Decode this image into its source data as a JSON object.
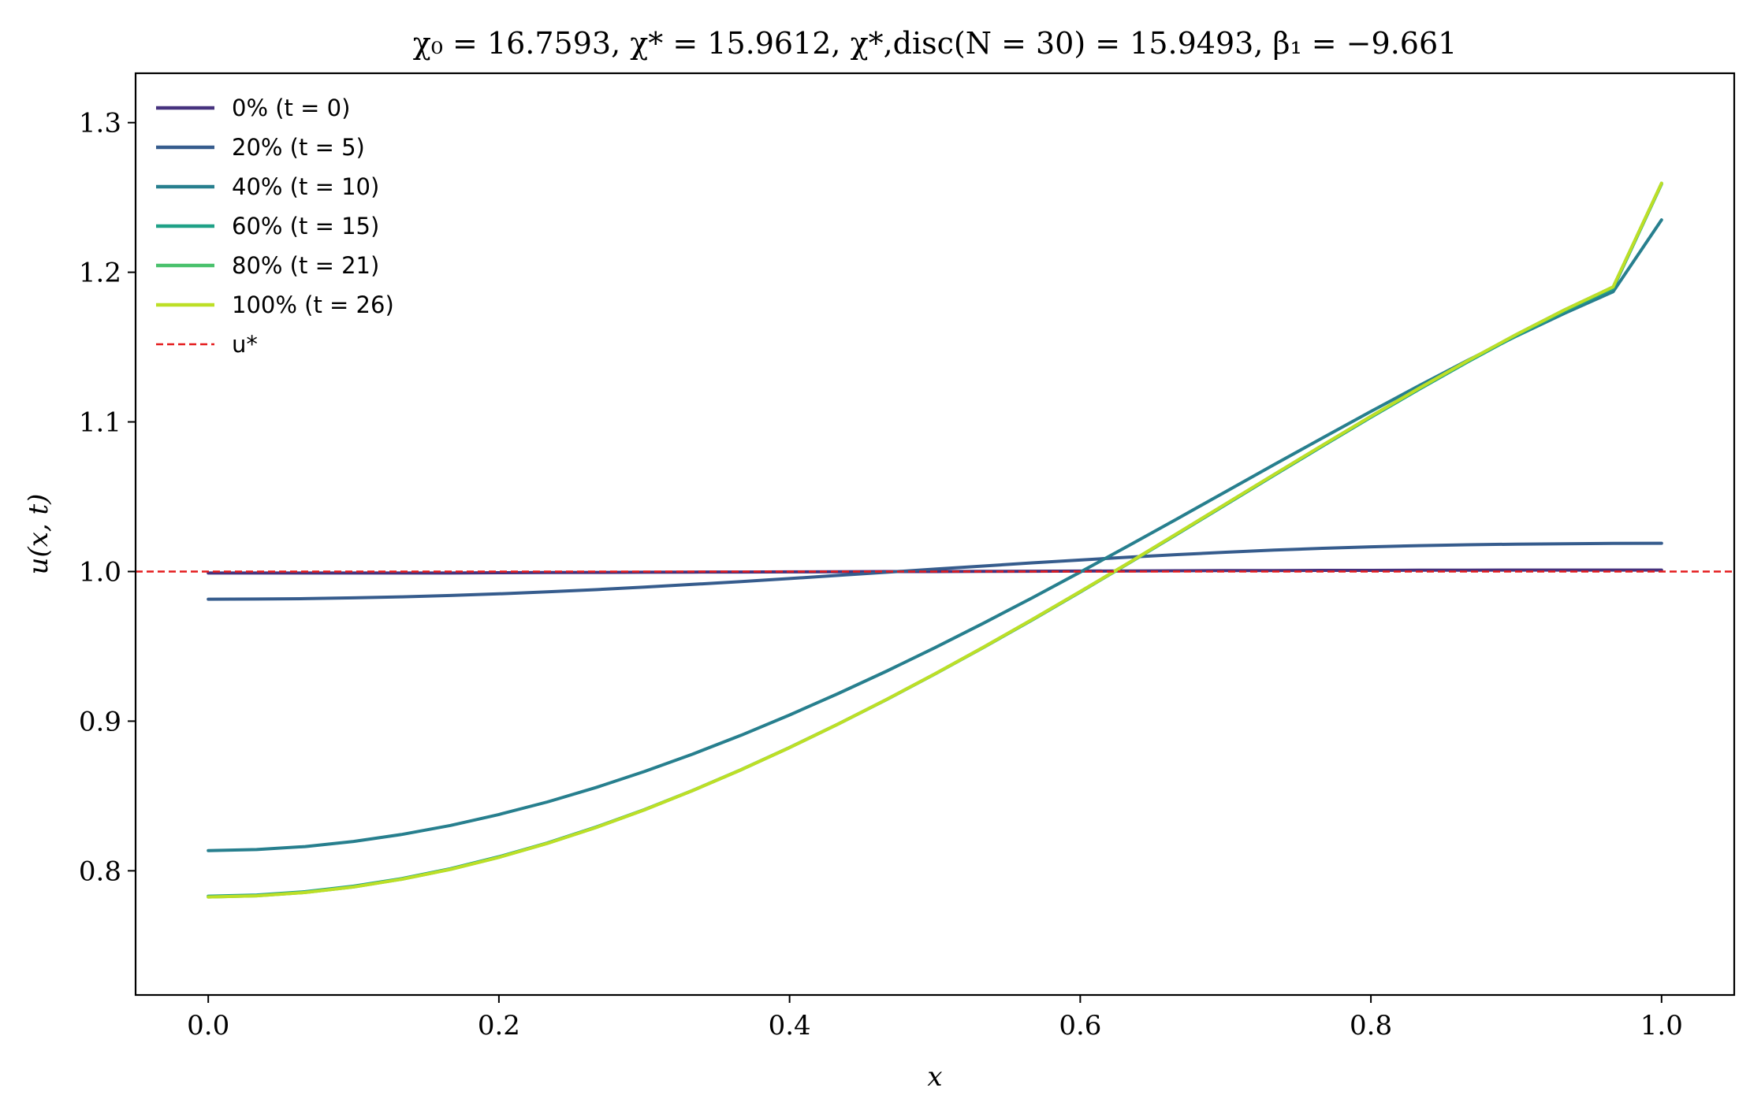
{
  "chart_data": {
    "type": "line",
    "title": "χ₀ = 16.7593,  χ* = 15.9612,  χ*,disc(N = 30) = 15.9493,  β₁ = −9.661",
    "xlabel": "x",
    "ylabel": "u(x, t)",
    "xlim": [
      -0.05,
      1.05
    ],
    "ylim": [
      0.717,
      1.333
    ],
    "xticks": [
      0.0,
      0.2,
      0.4,
      0.6,
      0.8,
      1.0
    ],
    "xtick_labels": [
      "0.0",
      "0.2",
      "0.4",
      "0.6",
      "0.8",
      "1.0"
    ],
    "yticks": [
      0.8,
      0.9,
      1.0,
      1.1,
      1.2,
      1.3
    ],
    "ytick_labels": [
      "0.8",
      "0.9",
      "1.0",
      "1.1",
      "1.2",
      "1.3"
    ],
    "grid": false,
    "legend_position": "top-left",
    "x": [
      0.0,
      0.0333,
      0.0667,
      0.1,
      0.1333,
      0.1667,
      0.2,
      0.2333,
      0.2667,
      0.3,
      0.3333,
      0.3667,
      0.4,
      0.4333,
      0.4667,
      0.5,
      0.5333,
      0.5667,
      0.6,
      0.6333,
      0.6667,
      0.7,
      0.7333,
      0.7667,
      0.8,
      0.8333,
      0.8667,
      0.9,
      0.9333,
      0.9667,
      1.0
    ],
    "series": [
      {
        "name": "0% (t = 0)",
        "color": "#46327e",
        "values": [
          0.999,
          0.999,
          0.999,
          0.999,
          0.999,
          0.999,
          0.9992,
          0.9993,
          0.9994,
          0.9995,
          0.9996,
          0.9997,
          0.9998,
          0.9999,
          1.0,
          1.0,
          1.0001,
          1.0002,
          1.0003,
          1.0004,
          1.0005,
          1.0006,
          1.0007,
          1.0008,
          1.0008,
          1.0009,
          1.0009,
          1.001,
          1.001,
          1.001,
          1.001
        ]
      },
      {
        "name": "20% (t = 5)",
        "color": "#365c8d",
        "values": [
          0.9815,
          0.9816,
          0.9819,
          0.9824,
          0.9831,
          0.984,
          0.9851,
          0.9864,
          0.9879,
          0.9896,
          0.9914,
          0.9933,
          0.9953,
          0.9974,
          0.9995,
          1.0016,
          1.0037,
          1.0058,
          1.0077,
          1.0096,
          1.0113,
          1.0129,
          1.0143,
          1.0155,
          1.0165,
          1.0173,
          1.0179,
          1.0183,
          1.0186,
          1.0188,
          1.0189
        ]
      },
      {
        "name": "40% (t = 10)",
        "color": "#277f8e",
        "values": [
          0.8135,
          0.8142,
          0.8162,
          0.8196,
          0.8243,
          0.8303,
          0.8376,
          0.846,
          0.8556,
          0.8663,
          0.878,
          0.8906,
          0.9041,
          0.9184,
          0.9334,
          0.9491,
          0.9654,
          0.9823,
          0.9996,
          1.0173,
          1.0352,
          1.0533,
          1.0714,
          1.0893,
          1.107,
          1.1243,
          1.1412,
          1.1573,
          1.1726,
          1.187,
          1.235
        ]
      },
      {
        "name": "60% (t = 15)",
        "color": "#1fa187",
        "values": [
          0.783,
          0.7838,
          0.786,
          0.7897,
          0.7948,
          0.8014,
          0.8094,
          0.8186,
          0.8292,
          0.8409,
          0.8537,
          0.8676,
          0.8824,
          0.898,
          0.9144,
          0.9315,
          0.9492,
          0.9675,
          0.9863,
          1.0055,
          1.025,
          1.0446,
          1.0643,
          1.0838,
          1.1031,
          1.1219,
          1.1402,
          1.1576,
          1.174,
          1.1893,
          1.259
        ]
      },
      {
        "name": "80% (t = 21)",
        "color": "#4ac16d",
        "values": [
          0.7825,
          0.7833,
          0.7855,
          0.7892,
          0.7944,
          0.801,
          0.809,
          0.8183,
          0.8289,
          0.8407,
          0.8536,
          0.8675,
          0.8823,
          0.898,
          0.9145,
          0.9316,
          0.9494,
          0.9678,
          0.9866,
          1.0058,
          1.0254,
          1.0451,
          1.0648,
          1.0844,
          1.1037,
          1.1226,
          1.1409,
          1.1584,
          1.1749,
          1.1902,
          1.2595
        ]
      },
      {
        "name": "100% (t = 26)",
        "color": "#bddf26",
        "values": [
          0.7825,
          0.7833,
          0.7855,
          0.7892,
          0.7944,
          0.801,
          0.809,
          0.8183,
          0.8289,
          0.8407,
          0.8536,
          0.8675,
          0.8823,
          0.898,
          0.9145,
          0.9316,
          0.9494,
          0.9678,
          0.9866,
          1.0058,
          1.0254,
          1.0451,
          1.0648,
          1.0844,
          1.1037,
          1.1226,
          1.1409,
          1.1584,
          1.1749,
          1.1902,
          1.2595
        ]
      }
    ],
    "reference_line": {
      "name": "u*",
      "y": 1.0,
      "color": "#e41a1c",
      "style": "dashed"
    }
  }
}
